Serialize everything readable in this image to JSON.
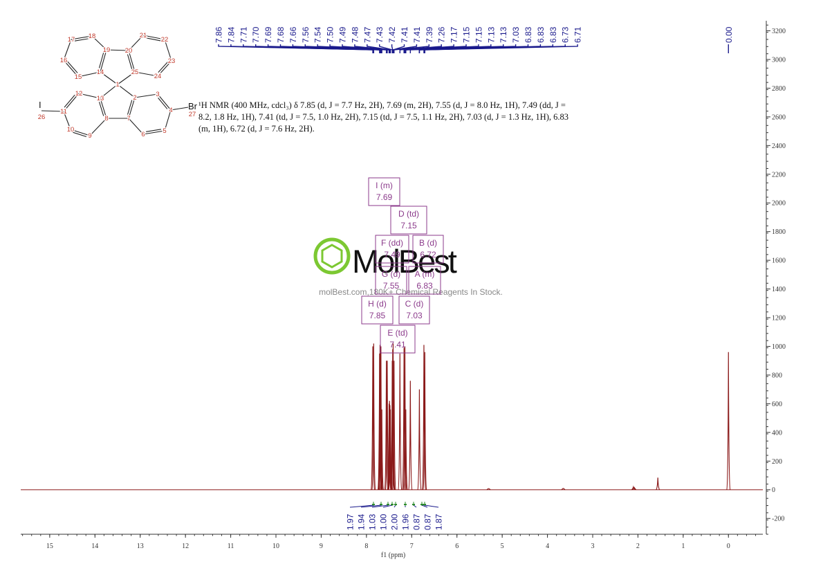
{
  "chart_data": {
    "type": "nmr",
    "x_label": "f1 (ppm)",
    "xlim": [
      15.64,
      -0.76
    ],
    "xticks": [
      15,
      14,
      13,
      12,
      11,
      10,
      9,
      8,
      7,
      6,
      5,
      4,
      3,
      2,
      1,
      0
    ],
    "ylim": [
      -310,
      3270
    ],
    "yticks": [
      -200,
      0,
      200,
      400,
      600,
      800,
      1000,
      1200,
      1400,
      1600,
      1800,
      2000,
      2200,
      2400,
      2600,
      2800,
      3000,
      3200
    ],
    "color": "#8b1a1a",
    "spectrum": {
      "x": [
        7.86,
        7.84,
        7.71,
        7.7,
        7.69,
        7.68,
        7.66,
        7.56,
        7.54,
        7.5,
        7.49,
        7.48,
        7.47,
        7.43,
        7.42,
        7.41,
        7.39,
        7.26,
        7.17,
        7.15,
        7.13,
        7.03,
        6.83,
        6.73,
        6.71,
        5.3,
        3.65,
        2.1,
        2.08,
        1.56,
        0.0
      ],
      "y": [
        1000,
        1020,
        950,
        1010,
        990,
        1000,
        560,
        900,
        900,
        600,
        620,
        590,
        560,
        900,
        980,
        1020,
        900,
        950,
        990,
        1000,
        560,
        760,
        700,
        1010,
        960,
        8,
        10,
        20,
        15,
        85,
        960
      ]
    },
    "peak_labels": {
      "x": [
        7.86,
        7.84,
        7.71,
        7.7,
        7.69,
        7.68,
        7.66,
        7.56,
        7.54,
        7.5,
        7.49,
        7.48,
        7.47,
        7.43,
        7.42,
        7.41,
        7.41,
        7.39,
        7.26,
        7.17,
        7.15,
        7.15,
        7.13,
        7.13,
        7.03,
        6.83,
        6.83,
        6.83,
        6.73,
        6.71
      ],
      "labels": [
        "7.86",
        "7.84",
        "7.71",
        "7.70",
        "7.69",
        "7.68",
        "7.66",
        "7.56",
        "7.54",
        "7.50",
        "7.49",
        "7.48",
        "7.47",
        "7.43",
        "7.42",
        "7.41",
        "7.41",
        "7.39",
        "7.26",
        "7.17",
        "7.15",
        "7.15",
        "7.13",
        "7.13",
        "7.03",
        "6.83",
        "6.83",
        "6.83",
        "6.73",
        "6.71"
      ]
    },
    "reference_peak": {
      "x": 0.0,
      "label": "0.00"
    },
    "integrals": [
      "1.97",
      "1.94",
      "1.03",
      "1.00",
      "2.00",
      "1.96",
      "0.87",
      "0.87",
      "1.87"
    ],
    "multiplets": [
      {
        "label": "I (m)",
        "shift": "7.69"
      },
      {
        "label": "D (td)",
        "shift": "7.15"
      },
      {
        "label": "F (dd)",
        "shift": "7.49"
      },
      {
        "label": "B (d)",
        "shift": "6.72"
      },
      {
        "label": "G (d)",
        "shift": "7.55"
      },
      {
        "label": "A (m)",
        "shift": "6.83"
      },
      {
        "label": "H (d)",
        "shift": "7.85"
      },
      {
        "label": "C (d)",
        "shift": "7.03"
      },
      {
        "label": "E (td)",
        "shift": "7.41"
      }
    ]
  },
  "description": "¹H NMR (400 MHz, cdcl₃) δ 7.85 (d, J = 7.7 Hz, 2H), 7.69 (m, 2H), 7.55 (d, J = 8.0 Hz, 1H), 7.49 (dd, J = 8.2, 1.8 Hz, 1H), 7.41 (td, J = 7.5, 1.0 Hz, 2H), 7.15 (td, J = 7.5, 1.1 Hz, 2H), 7.03 (d, J = 1.3 Hz, 1H), 6.83 (m, 1H), 6.72 (d, J = 7.6 Hz, 2H).",
  "molecule": {
    "atoms": [
      "1",
      "2",
      "3",
      "4",
      "5",
      "6",
      "7",
      "8",
      "9",
      "10",
      "11",
      "12",
      "13",
      "14",
      "15",
      "16",
      "17",
      "18",
      "19",
      "20",
      "21",
      "22",
      "23",
      "24",
      "25",
      "26",
      "27"
    ],
    "iodine": "I",
    "bromine": "Br"
  },
  "watermark": {
    "brand": "MolBest",
    "tagline": "molBest.com,180K+ Chemical Reagents In Stock."
  }
}
